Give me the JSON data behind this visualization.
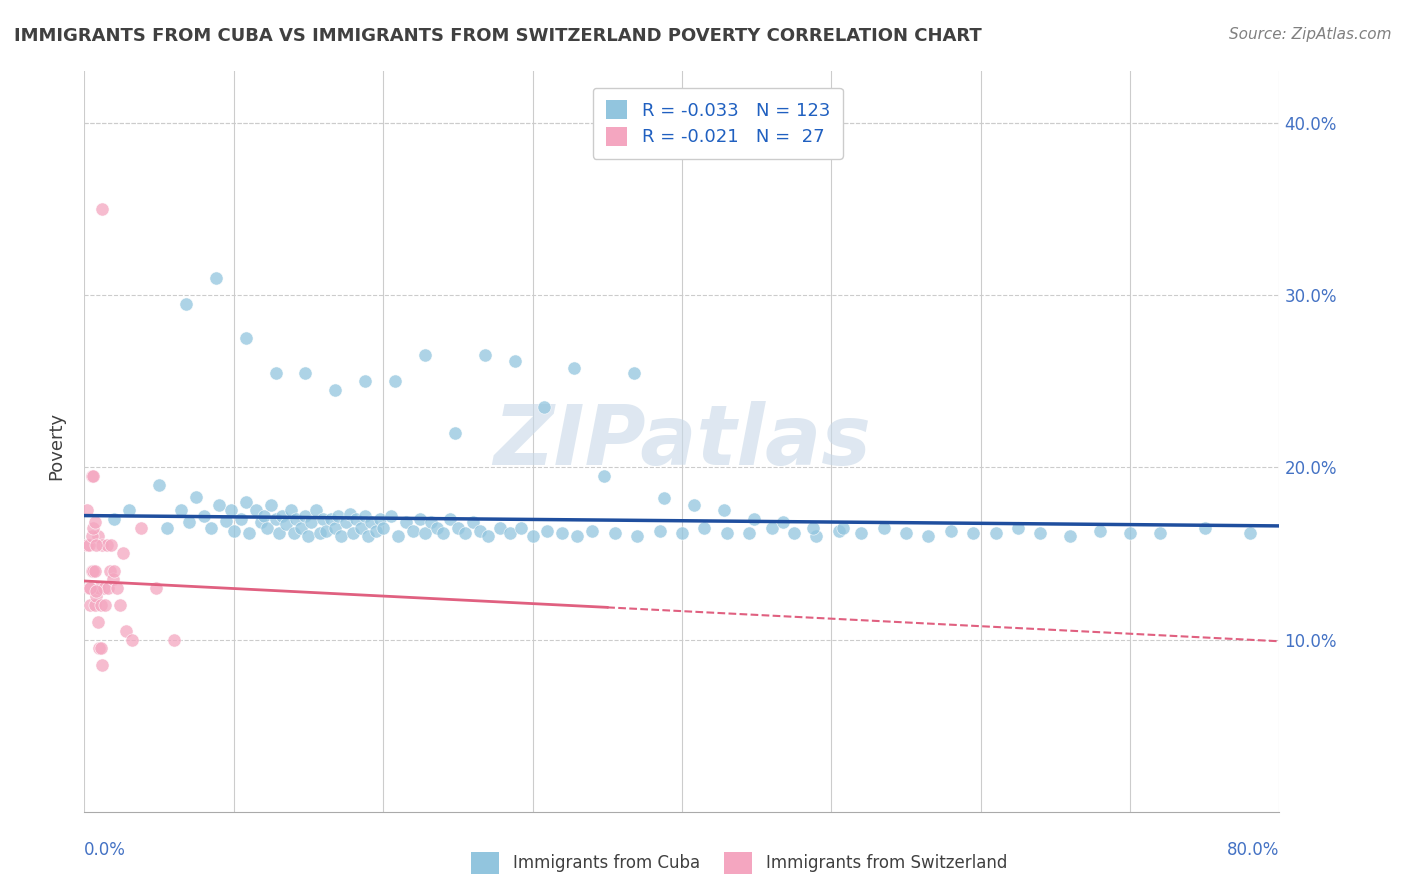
{
  "title": "IMMIGRANTS FROM CUBA VS IMMIGRANTS FROM SWITZERLAND POVERTY CORRELATION CHART",
  "source": "Source: ZipAtlas.com",
  "ylabel": "Poverty",
  "xlim": [
    0.0,
    0.8
  ],
  "ylim": [
    0.0,
    0.43
  ],
  "yticks": [
    0.1,
    0.2,
    0.3,
    0.4
  ],
  "ytick_labels": [
    "10.0%",
    "20.0%",
    "30.0%",
    "40.0%"
  ],
  "cuba_color": "#92c5de",
  "switzerland_color": "#f4a6c0",
  "cuba_line_color": "#1f4e9e",
  "switzerland_line_color": "#e06080",
  "watermark": "ZIPatlas",
  "background_color": "#ffffff",
  "grid_color": "#cccccc",
  "title_color": "#404040",
  "axis_label_color": "#4472c4",
  "cuba_trend_x": [
    0.0,
    0.8
  ],
  "cuba_trend_y": [
    0.172,
    0.166
  ],
  "switzerland_trend_x": [
    0.0,
    0.8
  ],
  "switzerland_trend_y": [
    0.134,
    0.099
  ],
  "cuba_x": [
    0.02,
    0.03,
    0.05,
    0.055,
    0.065,
    0.07,
    0.075,
    0.08,
    0.085,
    0.09,
    0.095,
    0.098,
    0.1,
    0.105,
    0.108,
    0.11,
    0.115,
    0.118,
    0.12,
    0.122,
    0.125,
    0.128,
    0.13,
    0.132,
    0.135,
    0.138,
    0.14,
    0.142,
    0.145,
    0.148,
    0.15,
    0.152,
    0.155,
    0.158,
    0.16,
    0.162,
    0.165,
    0.168,
    0.17,
    0.172,
    0.175,
    0.178,
    0.18,
    0.182,
    0.185,
    0.188,
    0.19,
    0.192,
    0.195,
    0.198,
    0.2,
    0.205,
    0.21,
    0.215,
    0.22,
    0.225,
    0.228,
    0.232,
    0.236,
    0.24,
    0.245,
    0.25,
    0.255,
    0.26,
    0.265,
    0.27,
    0.278,
    0.285,
    0.292,
    0.3,
    0.31,
    0.32,
    0.33,
    0.34,
    0.355,
    0.37,
    0.385,
    0.4,
    0.415,
    0.43,
    0.445,
    0.46,
    0.475,
    0.49,
    0.505,
    0.52,
    0.535,
    0.55,
    0.565,
    0.58,
    0.595,
    0.61,
    0.625,
    0.64,
    0.66,
    0.68,
    0.7,
    0.72,
    0.75,
    0.78,
    0.068,
    0.088,
    0.108,
    0.128,
    0.148,
    0.168,
    0.188,
    0.208,
    0.228,
    0.248,
    0.268,
    0.288,
    0.308,
    0.328,
    0.348,
    0.368,
    0.388,
    0.408,
    0.428,
    0.448,
    0.468,
    0.488,
    0.508
  ],
  "cuba_y": [
    0.17,
    0.175,
    0.19,
    0.165,
    0.175,
    0.168,
    0.183,
    0.172,
    0.165,
    0.178,
    0.169,
    0.175,
    0.163,
    0.17,
    0.18,
    0.162,
    0.175,
    0.168,
    0.172,
    0.165,
    0.178,
    0.17,
    0.162,
    0.172,
    0.167,
    0.175,
    0.162,
    0.17,
    0.165,
    0.172,
    0.16,
    0.168,
    0.175,
    0.162,
    0.17,
    0.163,
    0.17,
    0.165,
    0.172,
    0.16,
    0.168,
    0.173,
    0.162,
    0.17,
    0.165,
    0.172,
    0.16,
    0.168,
    0.163,
    0.17,
    0.165,
    0.172,
    0.16,
    0.168,
    0.163,
    0.17,
    0.162,
    0.168,
    0.165,
    0.162,
    0.17,
    0.165,
    0.162,
    0.168,
    0.163,
    0.16,
    0.165,
    0.162,
    0.165,
    0.16,
    0.163,
    0.162,
    0.16,
    0.163,
    0.162,
    0.16,
    0.163,
    0.162,
    0.165,
    0.162,
    0.162,
    0.165,
    0.162,
    0.16,
    0.163,
    0.162,
    0.165,
    0.162,
    0.16,
    0.163,
    0.162,
    0.162,
    0.165,
    0.162,
    0.16,
    0.163,
    0.162,
    0.162,
    0.165,
    0.162,
    0.295,
    0.31,
    0.275,
    0.255,
    0.255,
    0.245,
    0.25,
    0.25,
    0.265,
    0.22,
    0.265,
    0.262,
    0.235,
    0.258,
    0.195,
    0.255,
    0.182,
    0.178,
    0.175,
    0.17,
    0.168,
    0.165,
    0.165
  ],
  "switzerland_x": [
    0.002,
    0.003,
    0.004,
    0.005,
    0.006,
    0.007,
    0.008,
    0.009,
    0.01,
    0.011,
    0.012,
    0.013,
    0.014,
    0.015,
    0.016,
    0.017,
    0.018,
    0.019,
    0.02,
    0.022,
    0.024,
    0.026,
    0.028,
    0.032,
    0.038,
    0.048,
    0.06
  ],
  "switzerland_y": [
    0.155,
    0.13,
    0.12,
    0.14,
    0.14,
    0.12,
    0.125,
    0.16,
    0.13,
    0.12,
    0.155,
    0.13,
    0.12,
    0.155,
    0.13,
    0.14,
    0.155,
    0.135,
    0.14,
    0.13,
    0.12,
    0.15,
    0.105,
    0.1,
    0.165,
    0.13,
    0.1
  ],
  "switzerland_outlier_x": [
    0.012
  ],
  "switzerland_outlier_y": [
    0.35
  ],
  "switzerland_pink_left_x": [
    0.002,
    0.003,
    0.004,
    0.005,
    0.005,
    0.006,
    0.006,
    0.007,
    0.007,
    0.008,
    0.008,
    0.009,
    0.01,
    0.011,
    0.012
  ],
  "switzerland_pink_left_y": [
    0.175,
    0.155,
    0.13,
    0.195,
    0.16,
    0.195,
    0.165,
    0.14,
    0.168,
    0.155,
    0.128,
    0.11,
    0.095,
    0.095,
    0.085
  ]
}
